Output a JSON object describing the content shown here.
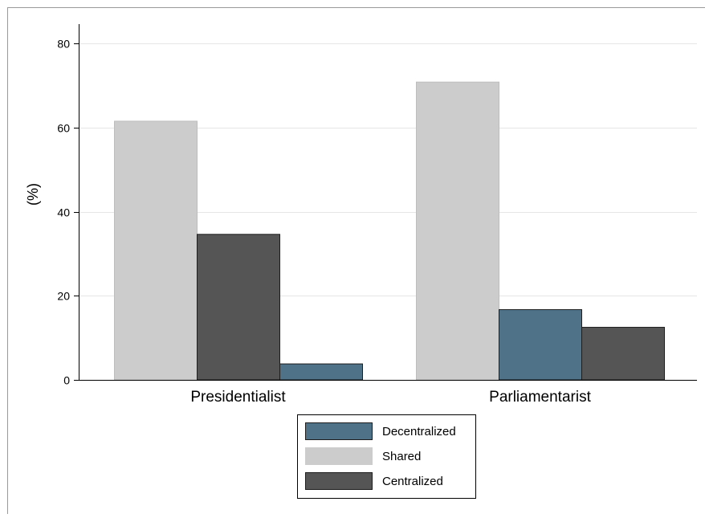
{
  "chart_data": {
    "type": "bar",
    "title": "",
    "xlabel": "",
    "ylabel": "(%)",
    "ylim": [
      0,
      80
    ],
    "yticks": [
      0,
      20,
      40,
      60,
      80
    ],
    "ytick_labels": [
      "0",
      "20",
      "40",
      "60",
      "80"
    ],
    "grid": true,
    "legend_position": "bottom-center",
    "categories": [
      "Presidentialist",
      "Parliamentarist"
    ],
    "legend_order": [
      "Decentralized",
      "Shared",
      "Centralized"
    ],
    "groups": [
      {
        "category": "Presidentialist",
        "bars": [
          {
            "series": "Shared",
            "value": 61.5
          },
          {
            "series": "Centralized",
            "value": 34.6
          },
          {
            "series": "Decentralized",
            "value": 3.8
          }
        ]
      },
      {
        "category": "Parliamentarist",
        "bars": [
          {
            "series": "Shared",
            "value": 70.8
          },
          {
            "series": "Decentralized",
            "value": 16.7
          },
          {
            "series": "Centralized",
            "value": 12.5
          }
        ]
      }
    ],
    "series_colors": {
      "Decentralized": "#4f7289",
      "Shared": "#cccccc",
      "Centralized": "#555555"
    }
  }
}
